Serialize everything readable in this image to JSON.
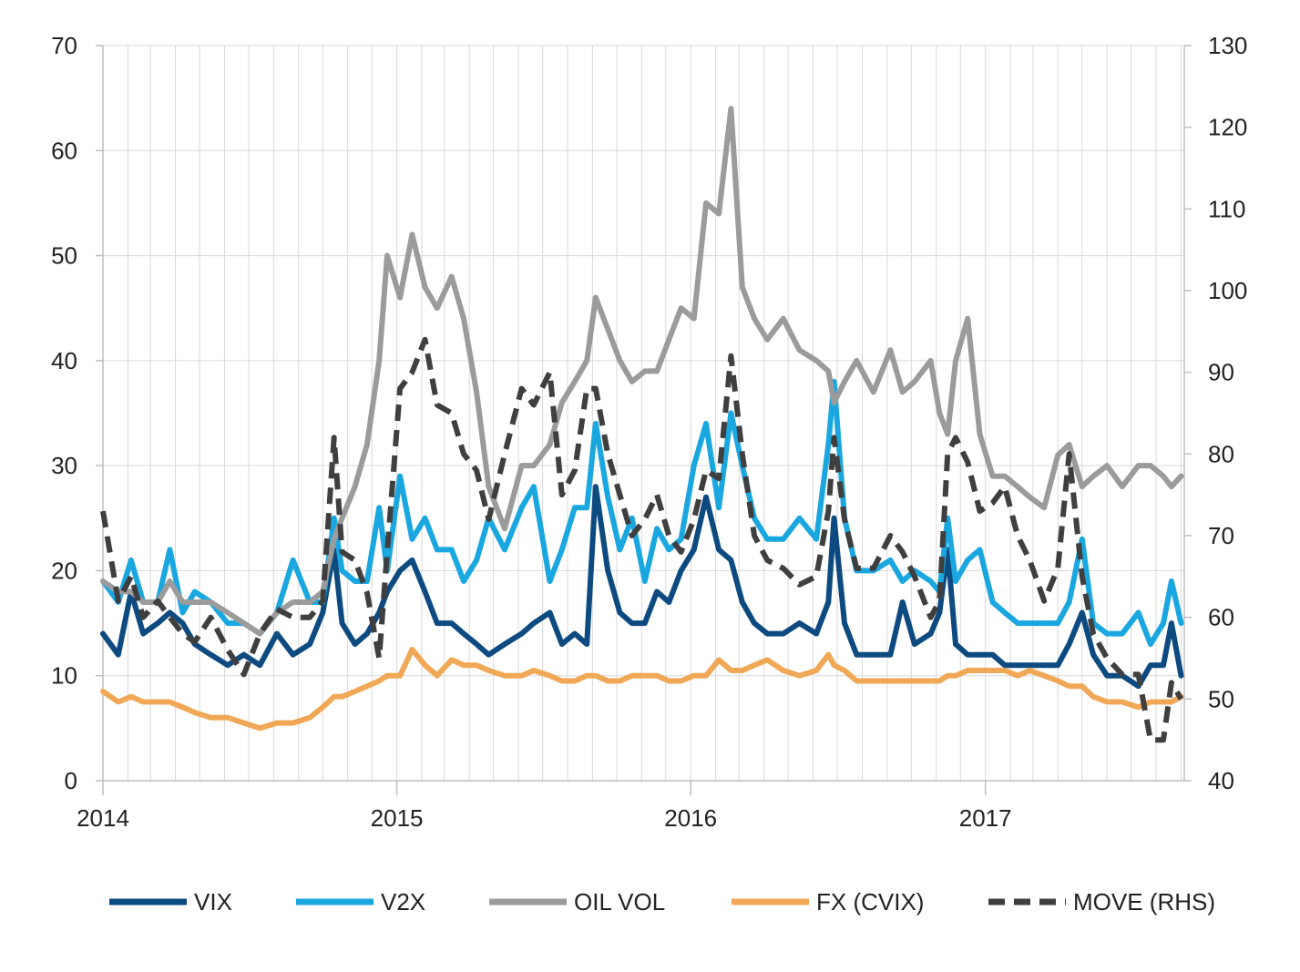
{
  "chart_data": {
    "type": "line",
    "title": "",
    "grid": true,
    "legend_position": "bottom",
    "x_range": [
      "2014-01-01",
      "2017-09-05"
    ],
    "x_ticks": [
      "2014",
      "2015",
      "2016",
      "2017"
    ],
    "y_left": {
      "range": [
        0,
        70
      ],
      "ticks": [
        "0",
        "10",
        "20",
        "30",
        "40",
        "50",
        "60",
        "70"
      ]
    },
    "y_right": {
      "range": [
        40,
        130
      ],
      "ticks": [
        "40",
        "50",
        "60",
        "70",
        "80",
        "90",
        "100",
        "110",
        "120",
        "130"
      ]
    },
    "series": [
      {
        "name": "VIX",
        "color": "#0d4a80",
        "dash": false,
        "axis": "left",
        "x": [
          "2014-01-01",
          "2014-01-20",
          "2014-02-05",
          "2014-02-20",
          "2014-03-10",
          "2014-03-25",
          "2014-04-10",
          "2014-04-25",
          "2014-05-15",
          "2014-06-05",
          "2014-06-25",
          "2014-07-15",
          "2014-08-05",
          "2014-08-25",
          "2014-09-15",
          "2014-10-01",
          "2014-10-15",
          "2014-10-25",
          "2014-11-10",
          "2014-11-25",
          "2014-12-10",
          "2014-12-20",
          "2015-01-05",
          "2015-01-20",
          "2015-02-05",
          "2015-02-20",
          "2015-03-10",
          "2015-03-25",
          "2015-04-10",
          "2015-04-25",
          "2015-05-15",
          "2015-06-05",
          "2015-06-20",
          "2015-07-10",
          "2015-07-25",
          "2015-08-10",
          "2015-08-25",
          "2015-09-05",
          "2015-09-20",
          "2015-10-05",
          "2015-10-20",
          "2015-11-05",
          "2015-11-20",
          "2015-12-05",
          "2015-12-20",
          "2016-01-05",
          "2016-01-20",
          "2016-02-05",
          "2016-02-20",
          "2016-03-05",
          "2016-03-20",
          "2016-04-05",
          "2016-04-25",
          "2016-05-15",
          "2016-06-05",
          "2016-06-20",
          "2016-06-27",
          "2016-07-10",
          "2016-07-25",
          "2016-08-15",
          "2016-09-05",
          "2016-09-20",
          "2016-10-05",
          "2016-10-25",
          "2016-11-05",
          "2016-11-15",
          "2016-11-25",
          "2016-12-10",
          "2016-12-25",
          "2017-01-10",
          "2017-01-25",
          "2017-02-10",
          "2017-02-25",
          "2017-03-15",
          "2017-04-01",
          "2017-04-15",
          "2017-05-01",
          "2017-05-15",
          "2017-06-01",
          "2017-06-20",
          "2017-07-10",
          "2017-07-25",
          "2017-08-10",
          "2017-08-20",
          "2017-09-01"
        ],
        "y": [
          14,
          12,
          18,
          14,
          15,
          16,
          15,
          13,
          12,
          11,
          12,
          11,
          14,
          12,
          13,
          16,
          22,
          15,
          13,
          14,
          16,
          18,
          20,
          21,
          18,
          15,
          15,
          14,
          13,
          12,
          13,
          14,
          15,
          16,
          13,
          14,
          13,
          28,
          20,
          16,
          15,
          15,
          18,
          17,
          20,
          22,
          27,
          22,
          21,
          17,
          15,
          14,
          14,
          15,
          14,
          17,
          25,
          15,
          12,
          12,
          12,
          17,
          13,
          14,
          16,
          22,
          13,
          12,
          12,
          12,
          11,
          11,
          11,
          11,
          11,
          13,
          16,
          12,
          10,
          10,
          9,
          11,
          11,
          15,
          10
        ]
      },
      {
        "name": "V2X",
        "color": "#1aa7e0",
        "dash": false,
        "axis": "left",
        "x": [
          "2014-01-01",
          "2014-01-20",
          "2014-02-05",
          "2014-02-20",
          "2014-03-10",
          "2014-03-25",
          "2014-04-10",
          "2014-04-25",
          "2014-05-15",
          "2014-06-05",
          "2014-06-25",
          "2014-07-15",
          "2014-08-05",
          "2014-08-25",
          "2014-09-15",
          "2014-10-01",
          "2014-10-15",
          "2014-10-25",
          "2014-11-10",
          "2014-11-25",
          "2014-12-10",
          "2014-12-20",
          "2015-01-05",
          "2015-01-20",
          "2015-02-05",
          "2015-02-20",
          "2015-03-10",
          "2015-03-25",
          "2015-04-10",
          "2015-04-25",
          "2015-05-15",
          "2015-06-05",
          "2015-06-20",
          "2015-07-10",
          "2015-07-25",
          "2015-08-10",
          "2015-08-25",
          "2015-09-05",
          "2015-09-20",
          "2015-10-05",
          "2015-10-20",
          "2015-11-05",
          "2015-11-20",
          "2015-12-05",
          "2015-12-20",
          "2016-01-05",
          "2016-01-20",
          "2016-02-05",
          "2016-02-20",
          "2016-03-05",
          "2016-03-20",
          "2016-04-05",
          "2016-04-25",
          "2016-05-15",
          "2016-06-05",
          "2016-06-20",
          "2016-06-27",
          "2016-07-10",
          "2016-07-25",
          "2016-08-15",
          "2016-09-05",
          "2016-09-20",
          "2016-10-05",
          "2016-10-25",
          "2016-11-05",
          "2016-11-15",
          "2016-11-25",
          "2016-12-10",
          "2016-12-25",
          "2017-01-10",
          "2017-01-25",
          "2017-02-10",
          "2017-02-25",
          "2017-03-15",
          "2017-04-01",
          "2017-04-15",
          "2017-05-01",
          "2017-05-15",
          "2017-06-01",
          "2017-06-20",
          "2017-07-10",
          "2017-07-25",
          "2017-08-10",
          "2017-08-20",
          "2017-09-01"
        ],
        "y": [
          19,
          17,
          21,
          17,
          17,
          22,
          16,
          18,
          17,
          15,
          15,
          14,
          16,
          21,
          17,
          17,
          25,
          20,
          19,
          19,
          26,
          20,
          29,
          23,
          25,
          22,
          22,
          19,
          21,
          25,
          22,
          26,
          28,
          19,
          22,
          26,
          26,
          34,
          27,
          22,
          25,
          19,
          24,
          22,
          23,
          30,
          34,
          26,
          35,
          30,
          25,
          23,
          23,
          25,
          23,
          32,
          38,
          25,
          20,
          20,
          21,
          19,
          20,
          19,
          18,
          25,
          19,
          21,
          22,
          17,
          16,
          15,
          15,
          15,
          15,
          17,
          23,
          15,
          14,
          14,
          16,
          13,
          15,
          19,
          15
        ]
      },
      {
        "name": "OIL VOL",
        "color": "#9b9b9b",
        "dash": false,
        "axis": "left",
        "x": [
          "2014-01-01",
          "2014-01-20",
          "2014-02-05",
          "2014-02-20",
          "2014-03-10",
          "2014-03-25",
          "2014-04-10",
          "2014-04-25",
          "2014-05-15",
          "2014-06-05",
          "2014-06-25",
          "2014-07-15",
          "2014-08-05",
          "2014-08-25",
          "2014-09-15",
          "2014-10-01",
          "2014-10-15",
          "2014-10-25",
          "2014-11-10",
          "2014-11-25",
          "2014-12-10",
          "2014-12-20",
          "2015-01-05",
          "2015-01-20",
          "2015-02-05",
          "2015-02-20",
          "2015-03-10",
          "2015-03-25",
          "2015-04-10",
          "2015-04-25",
          "2015-05-15",
          "2015-06-05",
          "2015-06-20",
          "2015-07-10",
          "2015-07-25",
          "2015-08-10",
          "2015-08-25",
          "2015-09-05",
          "2015-09-20",
          "2015-10-05",
          "2015-10-20",
          "2015-11-05",
          "2015-11-20",
          "2015-12-05",
          "2015-12-20",
          "2016-01-05",
          "2016-01-20",
          "2016-02-05",
          "2016-02-20",
          "2016-03-05",
          "2016-03-20",
          "2016-04-05",
          "2016-04-25",
          "2016-05-15",
          "2016-06-05",
          "2016-06-20",
          "2016-06-27",
          "2016-07-10",
          "2016-07-25",
          "2016-08-15",
          "2016-09-05",
          "2016-09-20",
          "2016-10-05",
          "2016-10-25",
          "2016-11-05",
          "2016-11-15",
          "2016-11-25",
          "2016-12-10",
          "2016-12-25",
          "2017-01-10",
          "2017-01-25",
          "2017-02-10",
          "2017-02-25",
          "2017-03-15",
          "2017-04-01",
          "2017-04-15",
          "2017-05-01",
          "2017-05-15",
          "2017-06-01",
          "2017-06-20",
          "2017-07-10",
          "2017-07-25",
          "2017-08-10",
          "2017-08-20",
          "2017-09-01"
        ],
        "y": [
          19,
          18,
          18,
          17,
          17,
          19,
          17,
          17,
          17,
          16,
          15,
          14,
          16,
          17,
          17,
          18,
          23,
          25,
          28,
          32,
          40,
          50,
          46,
          52,
          47,
          45,
          48,
          44,
          37,
          28,
          24,
          30,
          30,
          32,
          36,
          38,
          40,
          46,
          43,
          40,
          38,
          39,
          39,
          42,
          45,
          44,
          55,
          54,
          64,
          47,
          44,
          42,
          44,
          41,
          40,
          39,
          36,
          38,
          40,
          37,
          41,
          37,
          38,
          40,
          35,
          33,
          40,
          44,
          33,
          29,
          29,
          28,
          27,
          26,
          31,
          32,
          28,
          29,
          30,
          28,
          30,
          30,
          29,
          28,
          29
        ]
      },
      {
        "name": "FX (CVIX)",
        "color": "#f0a857",
        "dash": false,
        "axis": "left",
        "x": [
          "2014-01-01",
          "2014-01-20",
          "2014-02-05",
          "2014-02-20",
          "2014-03-10",
          "2014-03-25",
          "2014-04-10",
          "2014-04-25",
          "2014-05-15",
          "2014-06-05",
          "2014-06-25",
          "2014-07-15",
          "2014-08-05",
          "2014-08-25",
          "2014-09-15",
          "2014-10-01",
          "2014-10-15",
          "2014-10-25",
          "2014-11-10",
          "2014-11-25",
          "2014-12-10",
          "2014-12-20",
          "2015-01-05",
          "2015-01-20",
          "2015-02-05",
          "2015-02-20",
          "2015-03-10",
          "2015-03-25",
          "2015-04-10",
          "2015-04-25",
          "2015-05-15",
          "2015-06-05",
          "2015-06-20",
          "2015-07-10",
          "2015-07-25",
          "2015-08-10",
          "2015-08-25",
          "2015-09-05",
          "2015-09-20",
          "2015-10-05",
          "2015-10-20",
          "2015-11-05",
          "2015-11-20",
          "2015-12-05",
          "2015-12-20",
          "2016-01-05",
          "2016-01-20",
          "2016-02-05",
          "2016-02-20",
          "2016-03-05",
          "2016-03-20",
          "2016-04-05",
          "2016-04-25",
          "2016-05-15",
          "2016-06-05",
          "2016-06-20",
          "2016-06-27",
          "2016-07-10",
          "2016-07-25",
          "2016-08-15",
          "2016-09-05",
          "2016-09-20",
          "2016-10-05",
          "2016-10-25",
          "2016-11-05",
          "2016-11-15",
          "2016-11-25",
          "2016-12-10",
          "2016-12-25",
          "2017-01-10",
          "2017-01-25",
          "2017-02-10",
          "2017-02-25",
          "2017-03-15",
          "2017-04-01",
          "2017-04-15",
          "2017-05-01",
          "2017-05-15",
          "2017-06-01",
          "2017-06-20",
          "2017-07-10",
          "2017-07-25",
          "2017-08-10",
          "2017-08-20",
          "2017-09-01"
        ],
        "y": [
          8.5,
          7.5,
          8,
          7.5,
          7.5,
          7.5,
          7,
          6.5,
          6,
          6,
          5.5,
          5,
          5.5,
          5.5,
          6,
          7,
          8,
          8,
          8.5,
          9,
          9.5,
          10,
          10,
          12.5,
          11,
          10,
          11.5,
          11,
          11,
          10.5,
          10,
          10,
          10.5,
          10,
          9.5,
          9.5,
          10,
          10,
          9.5,
          9.5,
          10,
          10,
          10,
          9.5,
          9.5,
          10,
          10,
          11.5,
          10.5,
          10.5,
          11,
          11.5,
          10.5,
          10,
          10.5,
          12,
          11,
          10.5,
          9.5,
          9.5,
          9.5,
          9.5,
          9.5,
          9.5,
          9.5,
          10,
          10,
          10.5,
          10.5,
          10.5,
          10.5,
          10,
          10.5,
          10,
          9.5,
          9,
          9,
          8,
          7.5,
          7.5,
          7,
          7.5,
          7.5,
          7.5,
          8
        ]
      },
      {
        "name": "MOVE (RHS)",
        "color": "#3f3f3f",
        "dash": true,
        "axis": "right",
        "x": [
          "2014-01-01",
          "2014-01-20",
          "2014-02-05",
          "2014-02-20",
          "2014-03-10",
          "2014-03-25",
          "2014-04-10",
          "2014-04-25",
          "2014-05-15",
          "2014-06-05",
          "2014-06-25",
          "2014-07-15",
          "2014-08-05",
          "2014-08-25",
          "2014-09-15",
          "2014-10-01",
          "2014-10-15",
          "2014-10-25",
          "2014-11-10",
          "2014-11-25",
          "2014-12-10",
          "2014-12-20",
          "2015-01-05",
          "2015-01-20",
          "2015-02-05",
          "2015-02-20",
          "2015-03-10",
          "2015-03-25",
          "2015-04-10",
          "2015-04-25",
          "2015-05-15",
          "2015-06-05",
          "2015-06-20",
          "2015-07-10",
          "2015-07-25",
          "2015-08-10",
          "2015-08-25",
          "2015-09-05",
          "2015-09-20",
          "2015-10-05",
          "2015-10-20",
          "2015-11-05",
          "2015-11-20",
          "2015-12-05",
          "2015-12-20",
          "2016-01-05",
          "2016-01-20",
          "2016-02-05",
          "2016-02-20",
          "2016-03-05",
          "2016-03-20",
          "2016-04-05",
          "2016-04-25",
          "2016-05-15",
          "2016-06-05",
          "2016-06-20",
          "2016-06-27",
          "2016-07-10",
          "2016-07-25",
          "2016-08-15",
          "2016-09-05",
          "2016-09-20",
          "2016-10-05",
          "2016-10-25",
          "2016-11-05",
          "2016-11-15",
          "2016-11-25",
          "2016-12-10",
          "2016-12-25",
          "2017-01-10",
          "2017-01-25",
          "2017-02-10",
          "2017-02-25",
          "2017-03-15",
          "2017-04-01",
          "2017-04-15",
          "2017-05-01",
          "2017-05-15",
          "2017-06-01",
          "2017-06-20",
          "2017-07-10",
          "2017-07-25",
          "2017-08-10",
          "2017-08-20",
          "2017-09-01"
        ],
        "y": [
          73,
          62,
          65,
          60,
          62,
          60,
          58,
          57,
          60,
          56,
          53,
          58,
          61,
          60,
          60,
          62,
          82,
          68,
          67,
          63,
          55,
          68,
          88,
          90,
          94,
          86,
          85,
          80,
          78,
          72,
          80,
          88,
          86,
          90,
          75,
          78,
          88,
          88,
          80,
          75,
          70,
          72,
          75,
          70,
          68,
          72,
          78,
          77,
          92,
          80,
          70,
          67,
          66,
          64,
          65,
          73,
          82,
          72,
          66,
          66,
          70,
          68,
          65,
          60,
          62,
          80,
          82,
          79,
          73,
          74,
          76,
          70,
          67,
          62,
          66,
          80,
          65,
          58,
          55,
          53,
          53,
          45,
          45,
          52,
          50
        ]
      }
    ]
  }
}
